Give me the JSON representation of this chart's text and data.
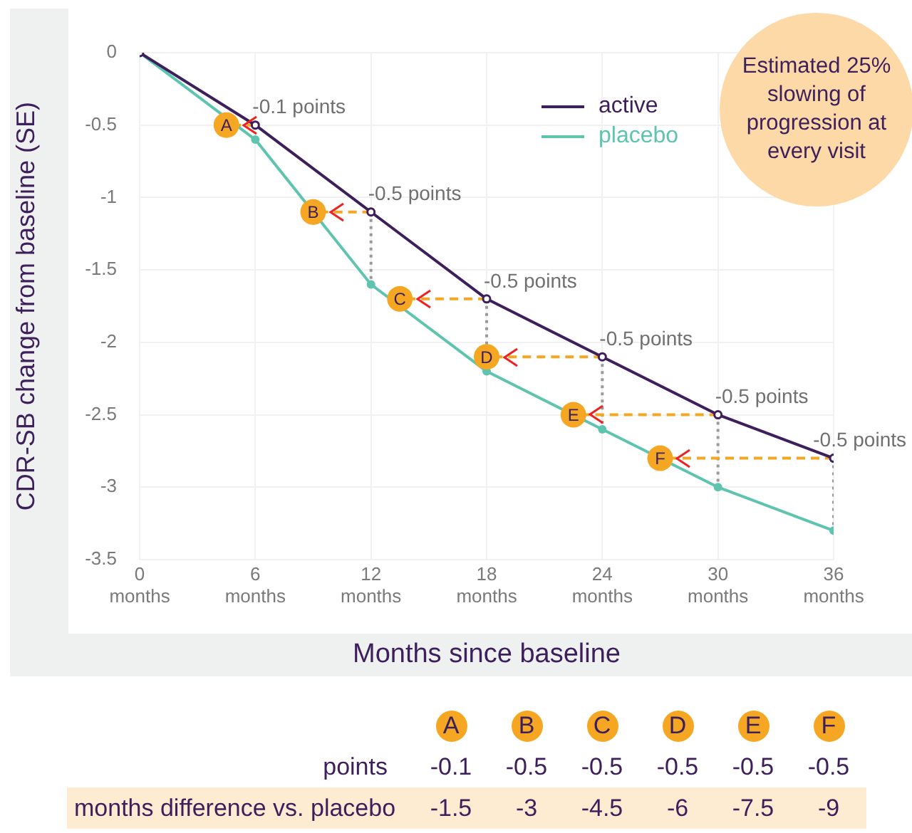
{
  "chart_data": [
    {
      "type": "line",
      "xlabel": "Months since baseline",
      "ylabel": "CDR-SB change from baseline (SE)",
      "xlim": [
        0,
        36
      ],
      "ylim": [
        -3.5,
        0
      ],
      "xticks": [
        {
          "value": 0,
          "label": "0\nmonths"
        },
        {
          "value": 6,
          "label": "6\nmonths"
        },
        {
          "value": 12,
          "label": "12\nmonths"
        },
        {
          "value": 18,
          "label": "18\nmonths"
        },
        {
          "value": 24,
          "label": "24\nmonths"
        },
        {
          "value": 30,
          "label": "30\nmonths"
        },
        {
          "value": 36,
          "label": "36\nmonths"
        }
      ],
      "yticks": [
        0,
        -0.5,
        -1,
        -1.5,
        -2,
        -2.5,
        -3,
        -3.5
      ],
      "grid": true,
      "legend": "top right",
      "marker": "circle",
      "series": [
        {
          "name": "active",
          "color": "#3d1f5c",
          "x": [
            0,
            6,
            12,
            18,
            24,
            30,
            36
          ],
          "values": [
            0,
            -0.5,
            -1.1,
            -1.7,
            -2.1,
            -2.5,
            -2.8
          ]
        },
        {
          "name": "placebo",
          "color": "#5ec4b0",
          "x": [
            0,
            6,
            12,
            18,
            24,
            30,
            36
          ],
          "values": [
            0,
            -0.6,
            -1.6,
            -2.2,
            -2.6,
            -3.0,
            -3.3
          ]
        },
        {
          "color": "#f5a623",
          "line_style": "dashed",
          "marker": "none",
          "x": [
            6,
            4.5
          ],
          "values": [
            -0.5,
            -0.5
          ]
        },
        {
          "color": "#f5a623",
          "line_style": "dashed",
          "marker": "none",
          "x": [
            12,
            9
          ],
          "values": [
            -1.1,
            -1.1
          ]
        },
        {
          "color": "#f5a623",
          "line_style": "dashed",
          "marker": "none",
          "x": [
            18,
            13.5
          ],
          "values": [
            -1.7,
            -1.7
          ]
        },
        {
          "color": "#f5a623",
          "line_style": "dashed",
          "marker": "none",
          "x": [
            24,
            18
          ],
          "values": [
            -2.1,
            -2.1
          ]
        },
        {
          "color": "#f5a623",
          "line_style": "dashed",
          "marker": "none",
          "x": [
            30,
            22.5
          ],
          "values": [
            -2.5,
            -2.5
          ]
        },
        {
          "color": "#f5a623",
          "line_style": "dashed",
          "marker": "none",
          "x": [
            36,
            27
          ],
          "values": [
            -2.8,
            -2.8
          ]
        },
        {
          "color": "#9a9a9a",
          "line_style": "dotted",
          "marker": "none",
          "x": [
            12,
            12
          ],
          "values": [
            -1.1,
            -1.6
          ]
        },
        {
          "color": "#9a9a9a",
          "line_style": "dotted",
          "marker": "none",
          "x": [
            18,
            18
          ],
          "values": [
            -1.7,
            -2.2
          ]
        },
        {
          "color": "#9a9a9a",
          "line_style": "dotted",
          "marker": "none",
          "x": [
            24,
            24
          ],
          "values": [
            -2.1,
            -2.6
          ]
        },
        {
          "color": "#9a9a9a",
          "line_style": "dotted",
          "marker": "none",
          "x": [
            30,
            30
          ],
          "values": [
            -2.5,
            -3.0
          ]
        },
        {
          "color": "#9a9a9a",
          "line_style": "dotted",
          "marker": "none",
          "x": [
            36,
            36
          ],
          "values": [
            -2.8,
            -3.3
          ]
        },
        {
          "type": "scatter",
          "color": "#f5a623",
          "x": [
            4.5,
            9,
            13.5,
            18,
            22.5,
            27
          ],
          "values": [
            -0.5,
            -1.1,
            -1.7,
            -2.1,
            -2.5,
            -2.8
          ],
          "value_labels": [
            "A",
            "B",
            "C",
            "D",
            "E",
            "F"
          ]
        }
      ],
      "annotations": [
        {
          "text": "-0.1 points",
          "x": 6,
          "y": -0.5
        },
        {
          "text": "-0.5 points",
          "x": 12,
          "y": -1.1
        },
        {
          "text": "-0.5 points",
          "x": 18,
          "y": -1.7
        },
        {
          "text": "-0.5 points",
          "x": 24,
          "y": -2.1
        },
        {
          "text": "-0.5 points",
          "x": 30,
          "y": -2.5
        },
        {
          "text": "-0.5 points",
          "x": 36,
          "y": -2.8
        },
        "Estimated 25% slowing of progression at every visit"
      ]
    },
    {
      "type": "other",
      "categories": [
        "A",
        "B",
        "C",
        "D",
        "E",
        "F"
      ],
      "data_labels": true,
      "series": [
        {
          "name": "points",
          "values": [
            -0.1,
            -0.5,
            -0.5,
            -0.5,
            -0.5,
            -0.5
          ]
        },
        {
          "name": "months difference vs. placebo",
          "values": [
            -1.5,
            -3,
            -4.5,
            -6,
            -7.5,
            -9
          ]
        }
      ]
    }
  ]
}
